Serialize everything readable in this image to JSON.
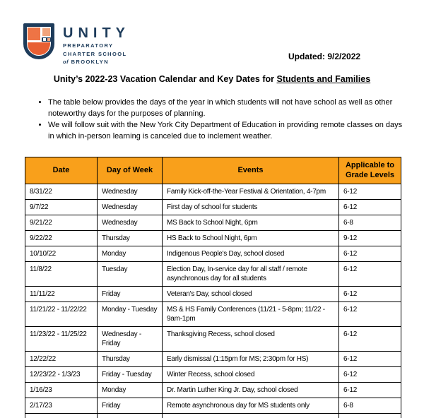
{
  "colors": {
    "navy": "#1E3C5B",
    "logo_orange": "#EE7445",
    "logo_salmon": "#F2A47C",
    "logo_deep_orange": "#E85F33",
    "header_orange": "#F9A01B",
    "border": "#000000"
  },
  "logo": {
    "name": "UNITY",
    "line1": "PREPARATORY",
    "line2": "CHARTER SCHOOL",
    "line3_of": "of",
    "line3_name": "BROOKLYN"
  },
  "header": {
    "updated": "Updated: 9/2/2022"
  },
  "title": {
    "prefix": "Unity’s 2022-23 Vacation Calendar and Key Dates for",
    "underlined": "Students and Families"
  },
  "bullets": [
    "The table below provides the days of the year in which students will not have school as well as other noteworthy days for the purposes of planning.",
    "We will follow suit with the New York City Department of Education in providing remote classes on days in which in-person learning is canceled due to inclement weather."
  ],
  "table": {
    "columns": [
      "Date",
      "Day of Week",
      "Events",
      "Applicable to Grade Levels"
    ],
    "rows": [
      {
        "date": "8/31/22",
        "day": "Wednesday",
        "event": "Family Kick-off-the-Year Festival & Orientation, 4-7pm",
        "grades": "6-12"
      },
      {
        "date": "9/7/22",
        "day": "Wednesday",
        "event": "First day of school for students",
        "grades": "6-12"
      },
      {
        "date": "9/21/22",
        "day": "Wednesday",
        "event": "MS Back to School Night, 6pm",
        "grades": "6-8"
      },
      {
        "date": "9/22/22",
        "day": "Thursday",
        "event": "HS Back to School Night, 6pm",
        "grades": "9-12"
      },
      {
        "date": "10/10/22",
        "day": "Monday",
        "event": "Indigenous People's Day, school closed",
        "grades": "6-12"
      },
      {
        "date": "11/8/22",
        "day": "Tuesday",
        "event": "Election Day, In-service day for all staff / remote asynchronous day for all students",
        "grades": "6-12"
      },
      {
        "date": "11/11/22",
        "day": "Friday",
        "event": "Veteran's Day, school closed",
        "grades": "6-12"
      },
      {
        "date": "11/21/22 - 11/22/22",
        "day": "Monday - Tuesday",
        "event": "MS & HS Family Conferences (11/21 - 5-8pm; 11/22 - 9am-1pm",
        "grades": "6-12"
      },
      {
        "date": "11/23/22 - 11/25/22",
        "day": "Wednesday - Friday",
        "event": "Thanksgiving Recess, school closed",
        "grades": "6-12"
      },
      {
        "date": "12/22/22",
        "day": "Thursday",
        "event": "Early dismissal (1:15pm for MS; 2:30pm for HS)",
        "grades": "6-12"
      },
      {
        "date": "12/23/22 - 1/3/23",
        "day": "Friday - Tuesday",
        "event": "Winter Recess, school closed",
        "grades": "6-12"
      },
      {
        "date": "1/16/23",
        "day": "Monday",
        "event": "Dr. Martin Luther King Jr. Day, school closed",
        "grades": "6-12"
      },
      {
        "date": "2/17/23",
        "day": "Friday",
        "event": "Remote asynchronous day for MS students only",
        "grades": "6-8"
      },
      {
        "date": "",
        "day": "",
        "event": "",
        "grades": ""
      }
    ]
  }
}
